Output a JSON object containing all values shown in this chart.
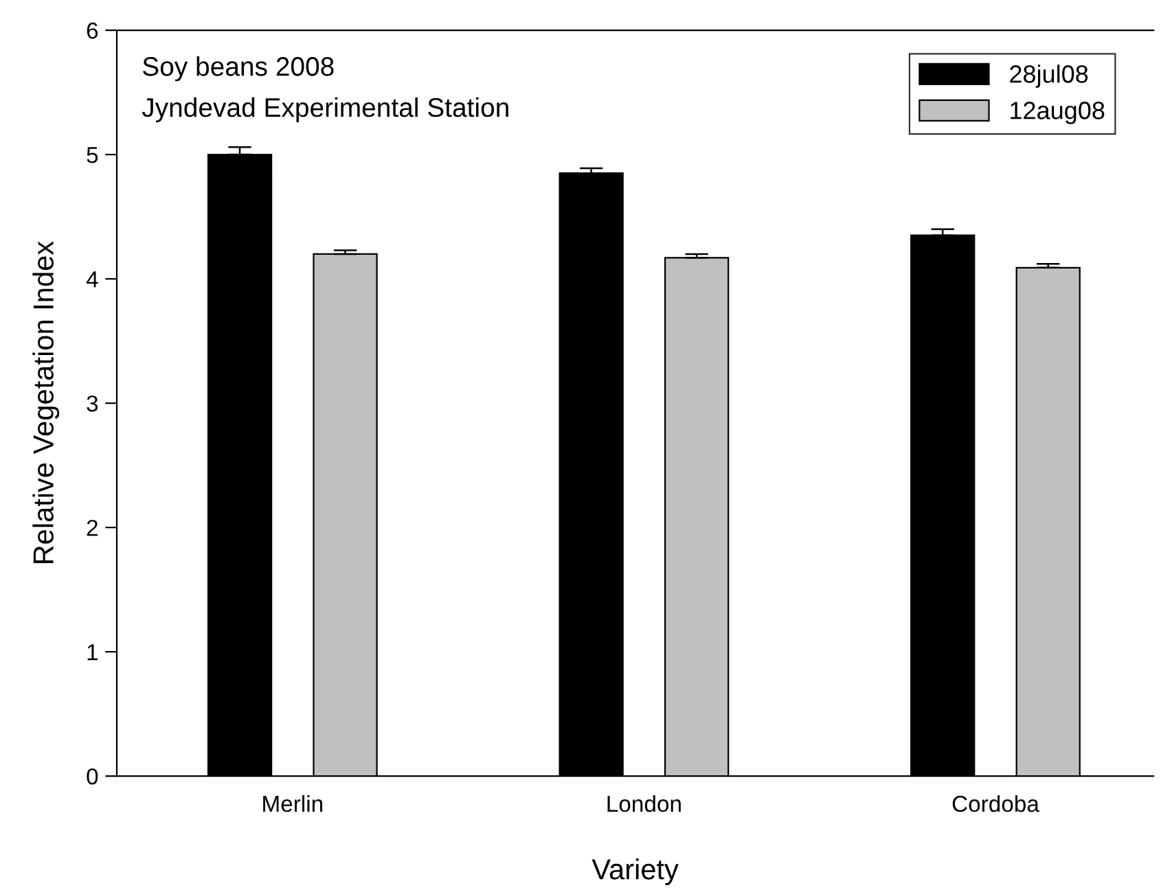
{
  "chart_data": {
    "type": "bar",
    "xlabel": "Variety",
    "ylabel": "Relative Vegetation Index",
    "annotations": [
      "Soy beans 2008",
      "Jyndevad Experimental Station"
    ],
    "categories": [
      "Merlin",
      "London",
      "Cordoba"
    ],
    "series": [
      {
        "name": "28jul08",
        "color": "#000000",
        "values": [
          5.0,
          4.85,
          4.35
        ],
        "errors": [
          [
            5.0,
            5.06
          ],
          [
            4.85,
            4.89
          ],
          [
            4.35,
            4.4
          ]
        ]
      },
      {
        "name": "12aug08",
        "color": "#c0c0c0",
        "values": [
          4.2,
          4.17,
          4.09
        ],
        "errors": [
          [
            4.2,
            4.23
          ],
          [
            4.17,
            4.2
          ],
          [
            4.09,
            4.12
          ]
        ]
      }
    ],
    "ylim": [
      0,
      6
    ],
    "yticks": [
      0,
      1,
      2,
      3,
      4,
      5,
      6
    ],
    "grid": false,
    "legend": "top right"
  }
}
